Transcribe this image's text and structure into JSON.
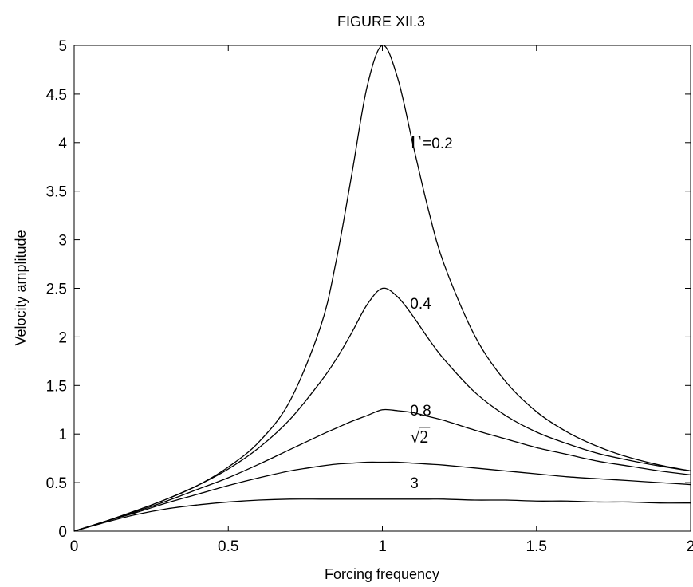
{
  "chart_data": {
    "type": "line",
    "title": "FIGURE XII.3",
    "xlabel": "Forcing frequency",
    "ylabel": "Velocity amplitude",
    "xlim": [
      0,
      2
    ],
    "ylim": [
      0,
      5
    ],
    "xticks": [
      0,
      0.5,
      1,
      1.5,
      2
    ],
    "xtick_labels": [
      "0",
      "0.5",
      "1",
      "1.5",
      "2"
    ],
    "yticks": [
      0,
      0.5,
      1,
      1.5,
      2,
      2.5,
      3,
      3.5,
      4,
      4.5,
      5
    ],
    "ytick_labels": [
      "0",
      "0.5",
      "1",
      "1.5",
      "2",
      "2.5",
      "3",
      "3.5",
      "4",
      "4.5",
      "5"
    ],
    "grid": false,
    "legend": "none",
    "line_color": "#000000",
    "gamma_symbol": "Γ",
    "sqrt_symbol": "√",
    "x": [
      0,
      0.1,
      0.2,
      0.3,
      0.4,
      0.5,
      0.6,
      0.7,
      0.8,
      0.85,
      0.9,
      0.95,
      1.0,
      1.05,
      1.1,
      1.15,
      1.2,
      1.3,
      1.4,
      1.5,
      1.6,
      1.7,
      1.8,
      1.9,
      2.0
    ],
    "series": [
      {
        "label_prefix": "Γ",
        "label": "=0.2",
        "gamma": 0.2,
        "values": [
          0,
          0.1,
          0.21,
          0.33,
          0.47,
          0.66,
          0.92,
          1.34,
          2.11,
          2.78,
          3.66,
          4.57,
          5.0,
          4.66,
          3.97,
          3.3,
          2.75,
          2.01,
          1.54,
          1.23,
          1.02,
          0.87,
          0.76,
          0.68,
          0.62
        ]
      },
      {
        "label": "0.4",
        "gamma": 0.4,
        "values": [
          0,
          0.1,
          0.21,
          0.33,
          0.47,
          0.64,
          0.86,
          1.15,
          1.54,
          1.77,
          2.04,
          2.33,
          2.5,
          2.41,
          2.21,
          1.98,
          1.77,
          1.43,
          1.19,
          1.02,
          0.9,
          0.8,
          0.73,
          0.67,
          0.62
        ]
      },
      {
        "label": "0.8",
        "gamma": 0.8,
        "values": [
          0,
          0.1,
          0.2,
          0.31,
          0.43,
          0.55,
          0.69,
          0.84,
          0.99,
          1.06,
          1.13,
          1.19,
          1.25,
          1.24,
          1.22,
          1.18,
          1.14,
          1.04,
          0.95,
          0.86,
          0.79,
          0.72,
          0.67,
          0.62,
          0.58
        ]
      },
      {
        "label_prefix": "√",
        "label": "2",
        "gamma": 1.4142,
        "values": [
          0,
          0.1,
          0.19,
          0.29,
          0.38,
          0.47,
          0.55,
          0.62,
          0.67,
          0.69,
          0.7,
          0.71,
          0.71,
          0.71,
          0.7,
          0.69,
          0.68,
          0.65,
          0.62,
          0.59,
          0.56,
          0.54,
          0.52,
          0.5,
          0.48
        ]
      },
      {
        "label": "3",
        "gamma": 3,
        "values": [
          0,
          0.09,
          0.17,
          0.23,
          0.27,
          0.3,
          0.32,
          0.33,
          0.33,
          0.33,
          0.33,
          0.33,
          0.33,
          0.33,
          0.33,
          0.33,
          0.33,
          0.32,
          0.32,
          0.31,
          0.31,
          0.3,
          0.3,
          0.29,
          0.29
        ]
      }
    ],
    "curve_label_anchor_x": [
      1.09,
      1.09,
      1.09,
      1.09,
      1.09
    ],
    "curve_label_anchor_y": [
      4.0,
      2.35,
      1.25,
      0.97,
      0.5
    ]
  }
}
